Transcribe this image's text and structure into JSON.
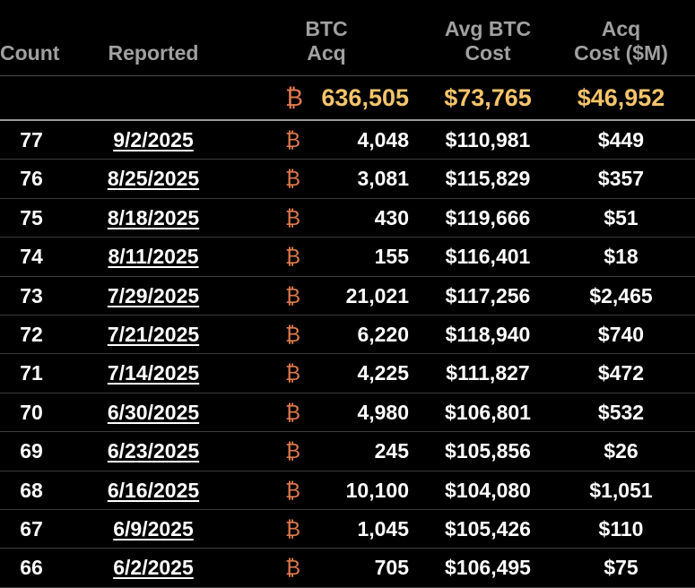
{
  "headers": {
    "count": "Count",
    "reported": "Reported",
    "btc_acq_line1": "BTC",
    "btc_acq_line2": "Acq",
    "avg_cost_line1": "Avg BTC",
    "avg_cost_line2": "Cost",
    "acq_cost_line1": "Acq",
    "acq_cost_line2": "Cost ($M)"
  },
  "totals": {
    "btc_icon": "₿",
    "btc_acq": "636,505",
    "avg_cost": "$73,765",
    "acq_cost": "$46,952"
  },
  "colors": {
    "background": "#000000",
    "header_text": "#a0a0a0",
    "totals_text": "#f5c46a",
    "btc_icon": "#e07a4f",
    "row_text": "#ffffff"
  },
  "rows": [
    {
      "count": "77",
      "reported": "9/2/2025",
      "icon": "₿",
      "btc_acq": "4,048",
      "avg_cost": "$110,981",
      "acq_cost": "$449"
    },
    {
      "count": "76",
      "reported": "8/25/2025",
      "icon": "₿",
      "btc_acq": "3,081",
      "avg_cost": "$115,829",
      "acq_cost": "$357"
    },
    {
      "count": "75",
      "reported": "8/18/2025",
      "icon": "₿",
      "btc_acq": "430",
      "avg_cost": "$119,666",
      "acq_cost": "$51"
    },
    {
      "count": "74",
      "reported": "8/11/2025",
      "icon": "₿",
      "btc_acq": "155",
      "avg_cost": "$116,401",
      "acq_cost": "$18"
    },
    {
      "count": "73",
      "reported": "7/29/2025",
      "icon": "₿",
      "btc_acq": "21,021",
      "avg_cost": "$117,256",
      "acq_cost": "$2,465"
    },
    {
      "count": "72",
      "reported": "7/21/2025",
      "icon": "₿",
      "btc_acq": "6,220",
      "avg_cost": "$118,940",
      "acq_cost": "$740"
    },
    {
      "count": "71",
      "reported": "7/14/2025",
      "icon": "₿",
      "btc_acq": "4,225",
      "avg_cost": "$111,827",
      "acq_cost": "$472"
    },
    {
      "count": "70",
      "reported": "6/30/2025",
      "icon": "₿",
      "btc_acq": "4,980",
      "avg_cost": "$106,801",
      "acq_cost": "$532"
    },
    {
      "count": "69",
      "reported": "6/23/2025",
      "icon": "₿",
      "btc_acq": "245",
      "avg_cost": "$105,856",
      "acq_cost": "$26"
    },
    {
      "count": "68",
      "reported": "6/16/2025",
      "icon": "₿",
      "btc_acq": "10,100",
      "avg_cost": "$104,080",
      "acq_cost": "$1,051"
    },
    {
      "count": "67",
      "reported": "6/9/2025",
      "icon": "₿",
      "btc_acq": "1,045",
      "avg_cost": "$105,426",
      "acq_cost": "$110"
    },
    {
      "count": "66",
      "reported": "6/2/2025",
      "icon": "₿",
      "btc_acq": "705",
      "avg_cost": "$106,495",
      "acq_cost": "$75"
    }
  ]
}
